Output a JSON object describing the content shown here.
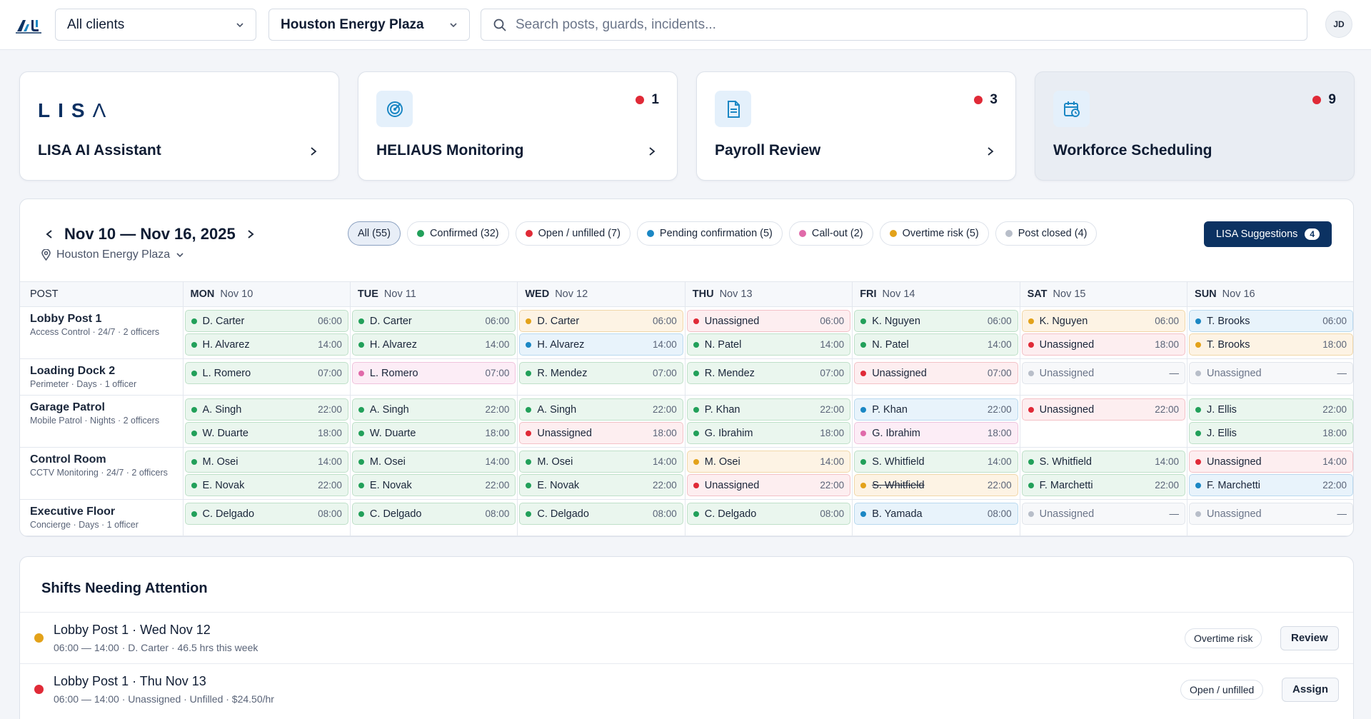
{
  "topbar": {
    "client_select": "All clients",
    "site_select": "Houston Energy Plaza",
    "search_placeholder": "Search posts, guards, incidents...",
    "avatar": "JD"
  },
  "cards": [
    {
      "logo_text": "LISA",
      "title": "LISA AI Assistant",
      "badge": null
    },
    {
      "title": "HELIAUS Monitoring",
      "badge": "1",
      "icon": "radar-icon"
    },
    {
      "title": "Payroll Review",
      "badge": "3",
      "icon": "document-icon"
    },
    {
      "title": "Workforce Scheduling",
      "badge": "9",
      "icon": "calendar-clock-icon"
    }
  ],
  "schedule": {
    "week_range": "Nov 10 — Nov 16, 2025",
    "location": "Houston Energy Plaza",
    "filters": [
      {
        "label": "All (55)",
        "color": null
      },
      {
        "label": "Confirmed (32)",
        "color": "#22a05a"
      },
      {
        "label": "Open / unfilled (7)",
        "color": "#e02a37"
      },
      {
        "label": "Pending confirmation (5)",
        "color": "#1b87c4"
      },
      {
        "label": "Call-out (2)",
        "color": "#e06aa9"
      },
      {
        "label": "Overtime risk (5)",
        "color": "#e3a21a"
      },
      {
        "label": "Post closed (4)",
        "color": "#b8bec9"
      }
    ],
    "lisa_button": "LISA Suggestions",
    "lisa_count": "4",
    "columns": [
      {
        "day": "POST",
        "date": ""
      },
      {
        "day": "MON",
        "date": "Nov 10"
      },
      {
        "day": "TUE",
        "date": "Nov 11"
      },
      {
        "day": "WED",
        "date": "Nov 12"
      },
      {
        "day": "THU",
        "date": "Nov 13"
      },
      {
        "day": "FRI",
        "date": "Nov 14"
      },
      {
        "day": "SAT",
        "date": "Nov 15"
      },
      {
        "day": "SUN",
        "date": "Nov 16"
      }
    ],
    "posts": [
      {
        "name": "Lobby Post 1",
        "sub": "Access Control · 24/7 · 2 officers",
        "days": [
          [
            [
              "D. Carter",
              "06:00",
              "confirmed"
            ],
            [
              "H. Alvarez",
              "14:00",
              "confirmed"
            ]
          ],
          [
            [
              "D. Carter",
              "06:00",
              "confirmed"
            ],
            [
              "H. Alvarez",
              "14:00",
              "confirmed"
            ]
          ],
          [
            [
              "D. Carter",
              "06:00",
              "overtime"
            ],
            [
              "H. Alvarez",
              "14:00",
              "pending"
            ]
          ],
          [
            [
              "Unassigned",
              "06:00",
              "open"
            ],
            [
              "N. Patel",
              "14:00",
              "confirmed"
            ]
          ],
          [
            [
              "K. Nguyen",
              "06:00",
              "confirmed"
            ],
            [
              "N. Patel",
              "14:00",
              "confirmed"
            ]
          ],
          [
            [
              "K. Nguyen",
              "06:00",
              "overtime"
            ],
            [
              "Unassigned",
              "18:00",
              "open"
            ]
          ],
          [
            [
              "T. Brooks",
              "06:00",
              "pending"
            ],
            [
              "T. Brooks",
              "18:00",
              "overtime"
            ]
          ]
        ]
      },
      {
        "name": "Loading Dock 2",
        "sub": "Perimeter · Days · 1 officer",
        "days": [
          [
            [
              "L. Romero",
              "07:00",
              "confirmed"
            ]
          ],
          [
            [
              "L. Romero",
              "07:00",
              "callout"
            ]
          ],
          [
            [
              "R. Mendez",
              "07:00",
              "confirmed"
            ]
          ],
          [
            [
              "R. Mendez",
              "07:00",
              "confirmed"
            ]
          ],
          [
            [
              "Unassigned",
              "07:00",
              "open"
            ]
          ],
          [
            [
              "Unassigned",
              "—",
              "closed"
            ]
          ],
          [
            [
              "Unassigned",
              "—",
              "closed"
            ]
          ]
        ]
      },
      {
        "name": "Garage Patrol",
        "sub": "Mobile Patrol · Nights · 2 officers",
        "days": [
          [
            [
              "A. Singh",
              "22:00",
              "confirmed"
            ],
            [
              "W. Duarte",
              "18:00",
              "confirmed"
            ]
          ],
          [
            [
              "A. Singh",
              "22:00",
              "confirmed"
            ],
            [
              "W. Duarte",
              "18:00",
              "confirmed"
            ]
          ],
          [
            [
              "A. Singh",
              "22:00",
              "confirmed"
            ],
            [
              "Unassigned",
              "18:00",
              "open"
            ]
          ],
          [
            [
              "P. Khan",
              "22:00",
              "confirmed"
            ],
            [
              "G. Ibrahim",
              "18:00",
              "confirmed"
            ]
          ],
          [
            [
              "P. Khan",
              "22:00",
              "pending"
            ],
            [
              "G. Ibrahim",
              "18:00",
              "callout"
            ]
          ],
          [
            [
              "Unassigned",
              "22:00",
              "open"
            ]
          ],
          [
            [
              "J. Ellis",
              "22:00",
              "confirmed"
            ],
            [
              "J. Ellis",
              "18:00",
              "confirmed"
            ]
          ]
        ]
      },
      {
        "name": "Control Room",
        "sub": "CCTV Monitoring · 24/7 · 2 officers",
        "days": [
          [
            [
              "M. Osei",
              "14:00",
              "confirmed"
            ],
            [
              "E. Novak",
              "22:00",
              "confirmed"
            ]
          ],
          [
            [
              "M. Osei",
              "14:00",
              "confirmed"
            ],
            [
              "E. Novak",
              "22:00",
              "confirmed"
            ]
          ],
          [
            [
              "M. Osei",
              "14:00",
              "confirmed"
            ],
            [
              "E. Novak",
              "22:00",
              "confirmed"
            ]
          ],
          [
            [
              "M. Osei",
              "14:00",
              "overtime"
            ],
            [
              "Unassigned",
              "22:00",
              "open"
            ]
          ],
          [
            [
              "S. Whitfield",
              "14:00",
              "confirmed"
            ],
            [
              "S. Whitfield",
              "22:00",
              "overtime-strike"
            ]
          ],
          [
            [
              "S. Whitfield",
              "14:00",
              "confirmed"
            ],
            [
              "F. Marchetti",
              "22:00",
              "confirmed"
            ]
          ],
          [
            [
              "Unassigned",
              "14:00",
              "open"
            ],
            [
              "F. Marchetti",
              "22:00",
              "pending"
            ]
          ]
        ]
      },
      {
        "name": "Executive Floor",
        "sub": "Concierge · Days · 1 officer",
        "days": [
          [
            [
              "C. Delgado",
              "08:00",
              "confirmed"
            ]
          ],
          [
            [
              "C. Delgado",
              "08:00",
              "confirmed"
            ]
          ],
          [
            [
              "C. Delgado",
              "08:00",
              "confirmed"
            ]
          ],
          [
            [
              "C. Delgado",
              "08:00",
              "confirmed"
            ]
          ],
          [
            [
              "B. Yamada",
              "08:00",
              "pending"
            ]
          ],
          [
            [
              "Unassigned",
              "—",
              "closed"
            ]
          ],
          [
            [
              "Unassigned",
              "—",
              "closed"
            ]
          ]
        ]
      }
    ]
  },
  "attention": {
    "title": "Shifts Needing Attention",
    "rows": [
      {
        "title": "Lobby Post 1 · Wed Nov 12",
        "detail": "06:00 — 14:00 · D. Carter · 46.5 hrs this week",
        "tag": "Overtime risk",
        "action": "Review",
        "color": "#e3a21a"
      },
      {
        "title": "Lobby Post 1 · Thu Nov 13",
        "detail": "06:00 — 14:00 · Unassigned · Unfilled · $24.50/hr",
        "tag": "Open / unfilled",
        "action": "Assign",
        "color": "#e02a37"
      }
    ]
  }
}
